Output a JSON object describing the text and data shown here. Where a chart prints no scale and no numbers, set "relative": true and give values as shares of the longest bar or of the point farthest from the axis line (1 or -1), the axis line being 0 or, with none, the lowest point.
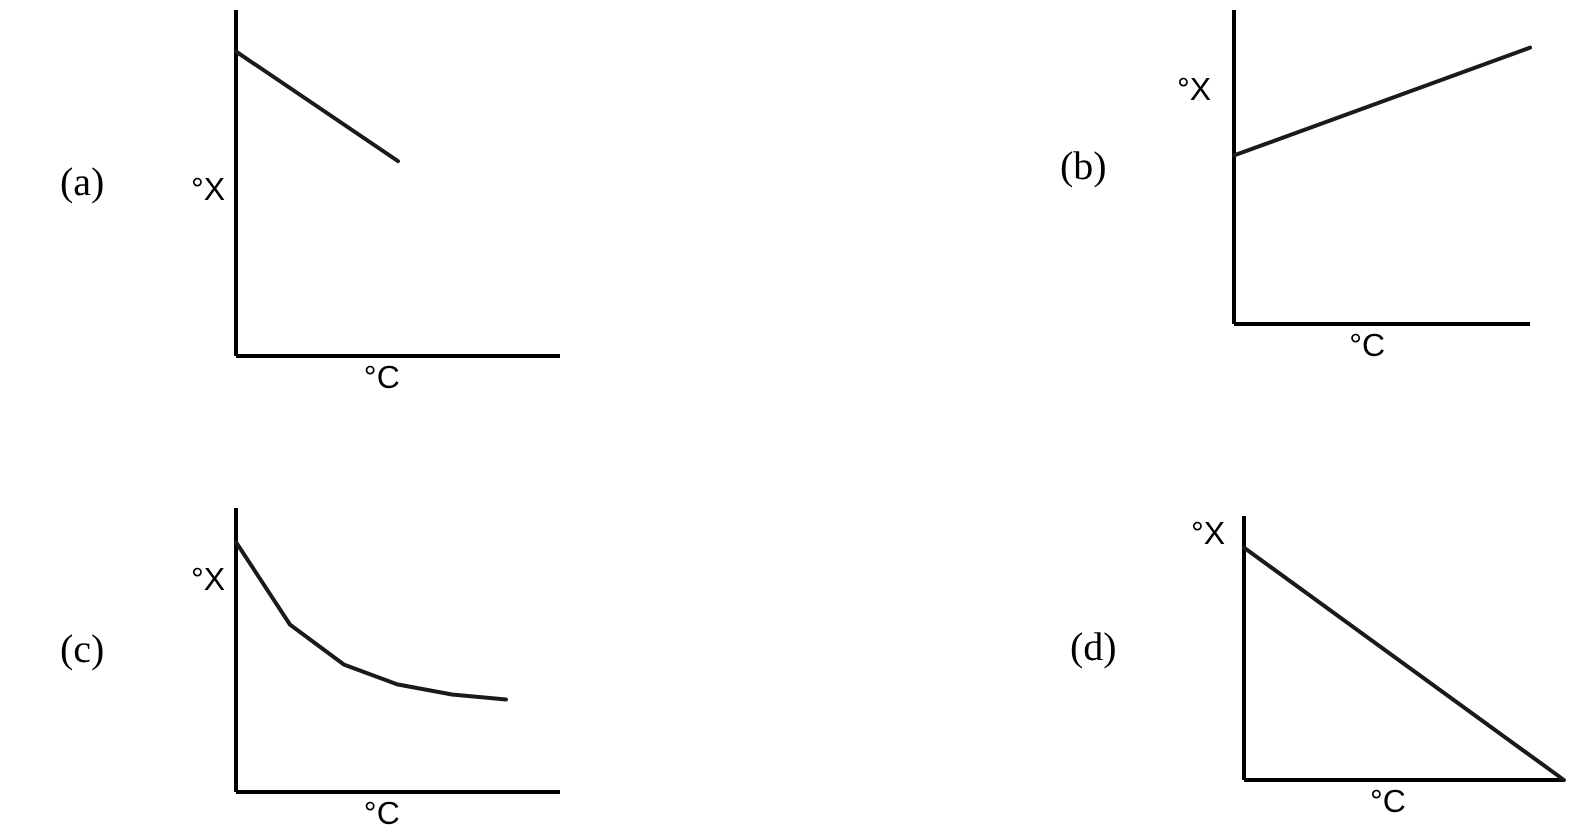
{
  "chart_data": [
    {
      "type": "line",
      "title": "(a)",
      "xlabel": "°C",
      "ylabel": "°X",
      "relative": true,
      "categories": [
        null,
        null,
        null
      ],
      "series": [
        {
          "color": "#1a1a1a",
          "values": [
            1,
            0.64,
            null
          ]
        }
      ],
      "grid": false
    },
    {
      "type": "line",
      "title": "(b)",
      "xlabel": "°C",
      "ylabel": "°X",
      "relative": true,
      "categories": [
        null,
        null
      ],
      "series": [
        {
          "color": "#1a1a1a",
          "values": [
            0.61,
            1
          ]
        }
      ],
      "grid": false
    },
    {
      "type": "line",
      "title": "(c)",
      "xlabel": "°C",
      "ylabel": "°X",
      "relative": true,
      "categories": [
        null,
        null,
        null,
        null,
        null,
        null,
        null
      ],
      "series": [
        {
          "color": "#1a1a1a",
          "values": [
            1,
            0.67,
            0.51,
            0.43,
            0.39,
            0.37,
            null
          ]
        }
      ],
      "grid": false
    },
    {
      "type": "line",
      "title": "(d)",
      "xlabel": "°C",
      "ylabel": "°X",
      "relative": true,
      "categories": [
        null,
        null,
        null
      ],
      "series": [
        {
          "color": "#1a1a1a",
          "values": [
            1,
            0.5,
            0
          ]
        }
      ],
      "grid": false
    }
  ]
}
